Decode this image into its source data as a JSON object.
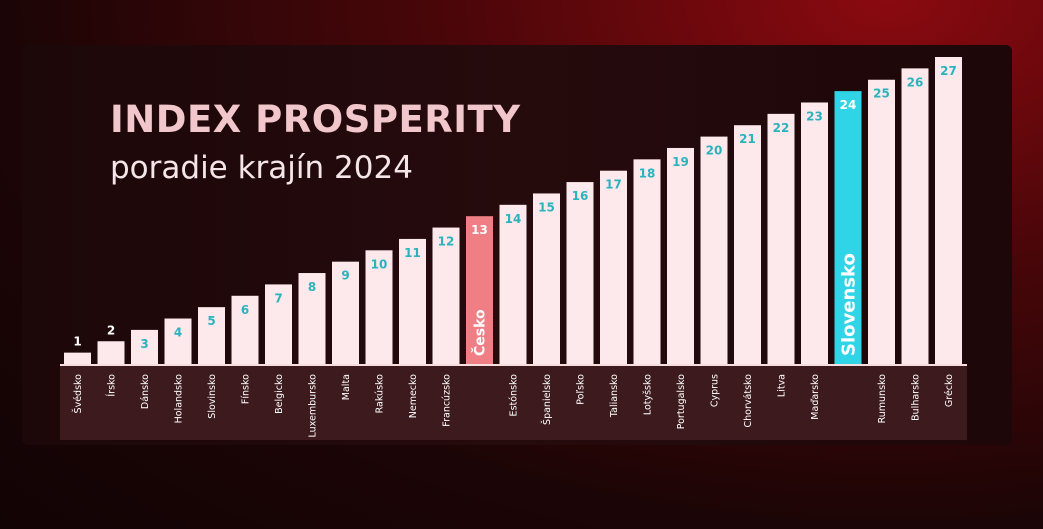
{
  "header": {
    "title": "INDEX PROSPERITY",
    "subtitle": "poradie krajín 2024"
  },
  "colors": {
    "bar_default": "#fde9ec",
    "bar_czech": "#ef7f84",
    "bar_slovakia": "#2fd4e6",
    "rank_text": "#2bb3bd",
    "rank_text_outside": "#ffffff",
    "category_text": "#ffffff"
  },
  "chart_data": {
    "type": "bar",
    "title": "INDEX PROSPERITY",
    "subtitle": "poradie krajín 2024",
    "xlabel": "",
    "ylabel": "",
    "categories": [
      "Švédsko",
      "Írsko",
      "Dánsko",
      "Holandsko",
      "Slovinsko",
      "Fínsko",
      "Belgicko",
      "Luxembursko",
      "Malta",
      "Rakúsko",
      "Nemecko",
      "Francúzsko",
      "Česko",
      "Estónsko",
      "Španielsko",
      "Poľsko",
      "Taliansko",
      "Lotyšsko",
      "Portugalsko",
      "Cyprus",
      "Chorvátsko",
      "Litva",
      "Maďarsko",
      "Slovensko",
      "Rumunsko",
      "Bulharsko",
      "Grécko"
    ],
    "values": [
      1,
      2,
      3,
      4,
      5,
      6,
      7,
      8,
      9,
      10,
      11,
      12,
      13,
      14,
      15,
      16,
      17,
      18,
      19,
      20,
      21,
      22,
      23,
      24,
      25,
      26,
      27
    ],
    "highlighted": [
      {
        "category": "Česko",
        "color": "#ef7f84"
      },
      {
        "category": "Slovensko",
        "color": "#2fd4e6"
      }
    ],
    "ylim": [
      0,
      27
    ]
  }
}
